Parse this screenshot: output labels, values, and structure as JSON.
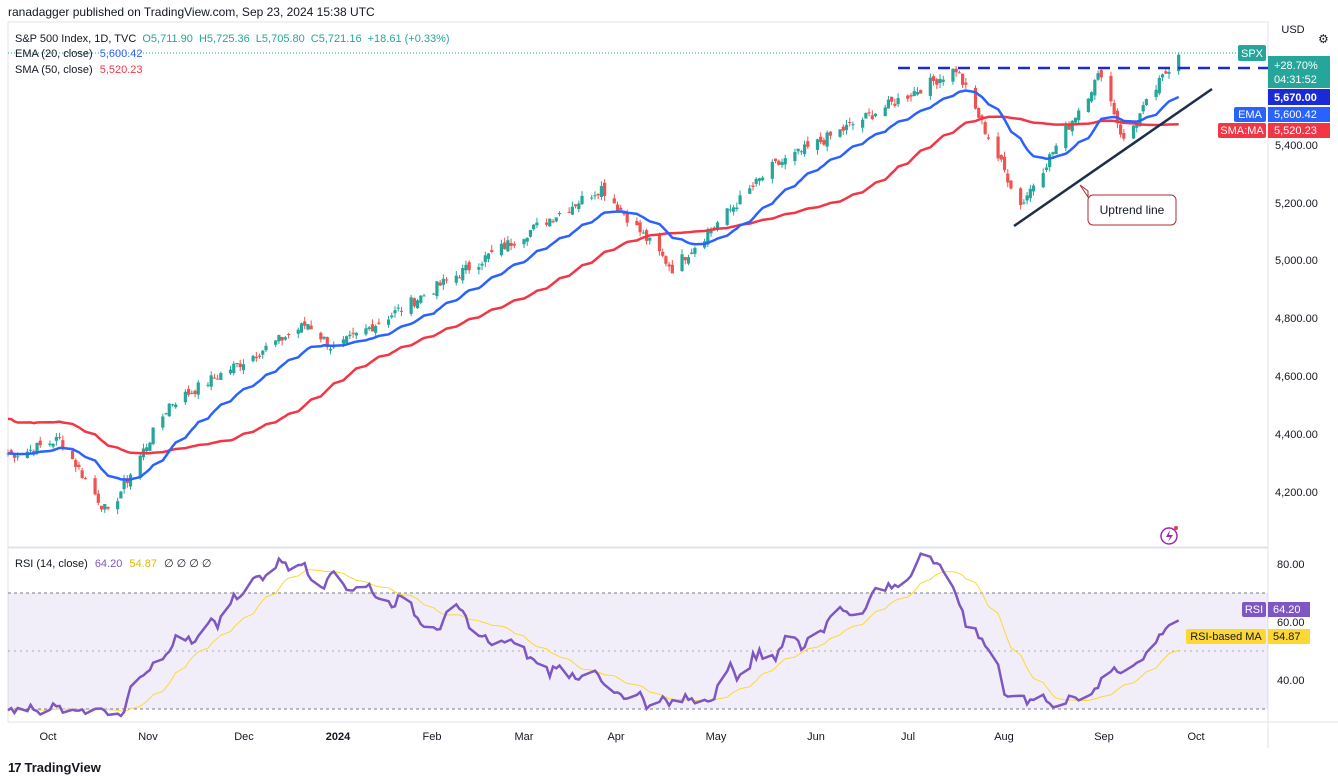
{
  "header": {
    "published": "ranadagger published on TradingView.com, Sep 23, 2024 15:38 UTC",
    "symbol": "S&P 500 Index, 1D, TVC",
    "open": "O5,711.90",
    "high": "H5,725.36",
    "low": "L5,705.80",
    "close": "C5,721.16",
    "change": "+18.61 (+0.33%)",
    "ema_label": "EMA (20, close)",
    "ema_value": "5,600.42",
    "sma_label": "SMA (50, close)",
    "sma_value": "5,520.23",
    "rsi_label": "RSI (14, close)",
    "rsi_value": "64.20",
    "rsi_ma_value": "54.87",
    "rsi_extra": "∅ ∅ ∅ ∅"
  },
  "price_axis": {
    "currency": "USD",
    "ticks": [
      "4,200.00",
      "4,400.00",
      "4,600.00",
      "4,800.00",
      "5,000.00",
      "5,200.00",
      "5,400.00"
    ],
    "tags": {
      "spx": "SPX",
      "pct": "+28.70%",
      "countdown": "04:31:52",
      "resistance": "5,670.00",
      "ema_name": "EMA",
      "ema": "5,600.42",
      "sma_name": "SMA:MA",
      "sma": "5,520.23"
    }
  },
  "rsi_axis": {
    "ticks": [
      "80.00",
      "60.00",
      "40.00"
    ],
    "tags": {
      "rsi_name": "RSI",
      "rsi": "64.20",
      "ma_name": "RSI-based MA",
      "ma": "54.87"
    }
  },
  "x_axis": {
    "labels": [
      "Oct",
      "Nov",
      "Dec",
      "2024",
      "Feb",
      "Mar",
      "Apr",
      "May",
      "Jun",
      "Jul",
      "Aug",
      "Sep",
      "Oct"
    ]
  },
  "annotation": {
    "text": "Uptrend line"
  },
  "footer": {
    "brand": "TradingView",
    "logo": "17"
  },
  "colors": {
    "up": "#26a69a",
    "down": "#ef5350",
    "ema": "#2962ff",
    "sma": "#f23645",
    "rsi": "#7e57c2",
    "rsi_ma": "#fdd835",
    "trend": "#1c2e4a",
    "resistance": "#1a2bd6",
    "spx_tag": "#26a69a"
  },
  "chart_data": [
    {
      "type": "candlestick",
      "title": "S&P 500 Index, 1D, TVC",
      "ylim": [
        4100,
        5760
      ],
      "x": [
        "2023-10",
        "2023-11",
        "2023-12",
        "2024-01",
        "2024-02",
        "2024-03",
        "2024-04",
        "2024-05",
        "2024-06",
        "2024-07",
        "2024-08",
        "2024-09"
      ],
      "key_points": [
        {
          "date": "2023-09-30",
          "close": 4330
        },
        {
          "date": "2023-10-12",
          "close": 4380
        },
        {
          "date": "2023-10-27",
          "close": 4120
        },
        {
          "date": "2023-11-15",
          "close": 4500
        },
        {
          "date": "2023-12-28",
          "close": 4780
        },
        {
          "date": "2024-01-05",
          "close": 4690
        },
        {
          "date": "2024-03-28",
          "close": 5250
        },
        {
          "date": "2024-04-19",
          "close": 4970
        },
        {
          "date": "2024-05-20",
          "close": 5320
        },
        {
          "date": "2024-07-16",
          "close": 5660
        },
        {
          "date": "2024-08-05",
          "close": 5190
        },
        {
          "date": "2024-08-30",
          "close": 5650
        },
        {
          "date": "2024-09-06",
          "close": 5410
        },
        {
          "date": "2024-09-23",
          "close": 5721.16
        }
      ],
      "series": [
        {
          "name": "EMA (20, close)",
          "last": 5600.42
        },
        {
          "name": "SMA (50, close)",
          "last": 5520.23
        }
      ],
      "levels": [
        {
          "name": "resistance",
          "value": 5670
        }
      ],
      "annotations": [
        "Uptrend line"
      ]
    },
    {
      "type": "line",
      "title": "RSI (14, close)",
      "ylim": [
        25,
        85
      ],
      "bands": [
        30,
        50,
        70
      ],
      "key_points": [
        {
          "date": "2023-10-27",
          "rsi": 28
        },
        {
          "date": "2023-12-20",
          "rsi": 83
        },
        {
          "date": "2024-04-19",
          "rsi": 30
        },
        {
          "date": "2024-07-10",
          "rsi": 82
        },
        {
          "date": "2024-08-05",
          "rsi": 30
        },
        {
          "date": "2024-09-06",
          "rsi": 41
        },
        {
          "date": "2024-09-23",
          "rsi": 64.2
        }
      ],
      "series": [
        {
          "name": "RSI",
          "last": 64.2
        },
        {
          "name": "RSI-based MA",
          "last": 54.87
        }
      ]
    }
  ]
}
